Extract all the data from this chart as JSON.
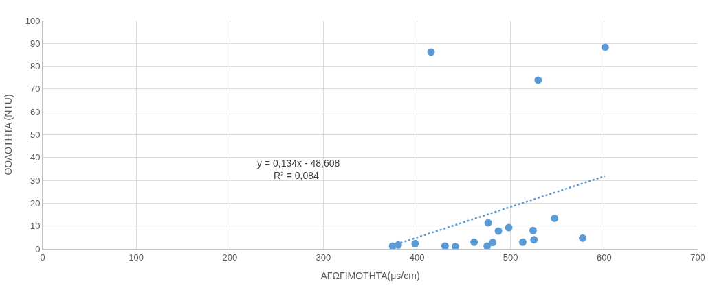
{
  "chart_data": {
    "type": "scatter",
    "xlabel": "ΑΓΩΓΙΜΟΤΗΤΑ(μs/cm)",
    "ylabel": "ΘΟΛΟΤΗΤΑ (NTU)",
    "xlim": [
      0,
      700
    ],
    "xticks": [
      0,
      100,
      200,
      300,
      400,
      500,
      600,
      700
    ],
    "ylim": [
      0,
      100
    ],
    "yticks": [
      0,
      10,
      20,
      30,
      40,
      50,
      60,
      70,
      80,
      90,
      100
    ],
    "grid": true,
    "series": [
      {
        "marker": "circle",
        "color": "#5b9bd5",
        "x": [
          374,
          380,
          398,
          430,
          441,
          461,
          475,
          476,
          481,
          487,
          498,
          513,
          524,
          525,
          547,
          577,
          415,
          529.5,
          601
        ],
        "values": [
          1.2,
          1.7,
          2.3,
          1.2,
          1.0,
          2.9,
          1.2,
          11.4,
          2.8,
          7.8,
          9.3,
          2.9,
          8.0,
          4.0,
          13.4,
          4.7,
          86.2,
          73.9,
          88.3
        ]
      },
      {
        "type": "line",
        "marker": "none",
        "line_style": "dotted",
        "color": "#5b9bd5",
        "x": [
          374,
          601
        ],
        "values": [
          1.5,
          31.9
        ]
      }
    ],
    "annotations": [
      "y = 0,134x - 48,608",
      "R² = 0,084"
    ]
  }
}
